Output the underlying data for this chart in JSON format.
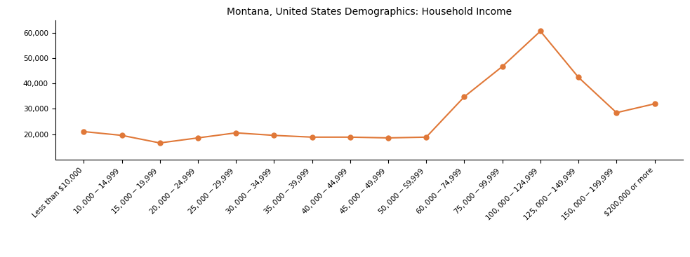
{
  "title": "Montana, United States Demographics: Household Income",
  "categories": [
    "Less than $10,000",
    "$10,000 - $14,999",
    "$15,000 - $19,999",
    "$20,000 - $24,999",
    "$25,000 - $29,999",
    "$30,000 - $34,999",
    "$35,000 - $39,999",
    "$40,000 - $44,999",
    "$45,000 - $49,999",
    "$50,000 - $59,999",
    "$60,000 - $74,999",
    "$75,000 - $99,999",
    "$100,000 - $124,999",
    "$125,000 - $149,999",
    "$150,000 - $199,999",
    "$200,000 or more"
  ],
  "values": [
    21000,
    19500,
    16500,
    18500,
    20500,
    19500,
    18800,
    18800,
    18500,
    18800,
    34800,
    46800,
    60800,
    42500,
    28500,
    32000
  ],
  "line_color": "#E07838",
  "marker": "o",
  "marker_size": 5,
  "ylim": [
    10000,
    65000
  ],
  "yticks": [
    20000,
    30000,
    40000,
    50000,
    60000
  ],
  "title_fontsize": 10,
  "tick_fontsize": 7.5,
  "figsize": [
    9.83,
    3.67
  ],
  "dpi": 100
}
